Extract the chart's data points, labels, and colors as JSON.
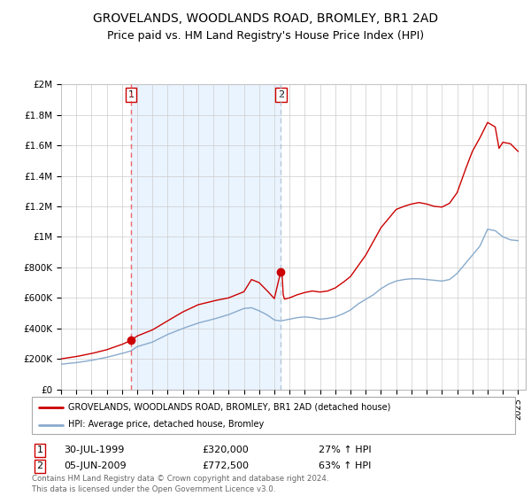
{
  "title": "GROVELANDS, WOODLANDS ROAD, BROMLEY, BR1 2AD",
  "subtitle": "Price paid vs. HM Land Registry's House Price Index (HPI)",
  "title_fontsize": 10,
  "subtitle_fontsize": 9,
  "ylim": [
    0,
    2000000
  ],
  "yticks": [
    0,
    200000,
    400000,
    600000,
    800000,
    1000000,
    1200000,
    1400000,
    1600000,
    1800000,
    2000000
  ],
  "ytick_labels": [
    "£0",
    "£200K",
    "£400K",
    "£600K",
    "£800K",
    "£1M",
    "£1.2M",
    "£1.4M",
    "£1.6M",
    "£1.8M",
    "£2M"
  ],
  "xlim_start": 1995.0,
  "xlim_end": 2025.5,
  "transaction1": {
    "date_label": "30-JUL-1999",
    "year": 1999.58,
    "price": 320000,
    "hpi_pct": "27% ↑ HPI",
    "label": "1"
  },
  "transaction2": {
    "date_label": "05-JUN-2009",
    "year": 2009.42,
    "price": 772500,
    "hpi_pct": "63% ↑ HPI",
    "label": "2"
  },
  "red_line_color": "#cc0000",
  "blue_line_color": "#88aacc",
  "vline1_color": "#ee4444",
  "vline2_color": "#aabbcc",
  "shade_color": "#ddeeff",
  "legend_label_red": "GROVELANDS, WOODLANDS ROAD, BROMLEY, BR1 2AD (detached house)",
  "legend_label_blue": "HPI: Average price, detached house, Bromley",
  "footer_line1": "Contains HM Land Registry data © Crown copyright and database right 2024.",
  "footer_line2": "This data is licensed under the Open Government Licence v3.0."
}
